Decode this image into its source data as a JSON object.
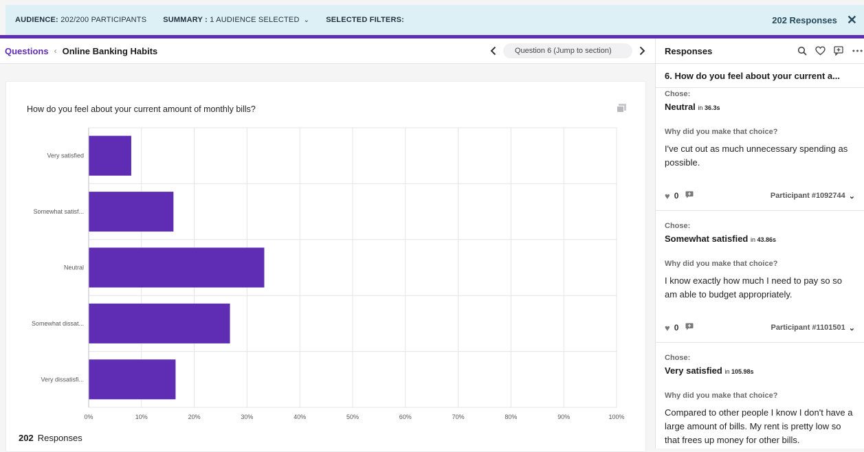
{
  "filterbar": {
    "audience_label": "AUDIENCE:",
    "audience_value": "202/200 PARTICIPANTS",
    "summary_label": "SUMMARY :",
    "summary_value": "1 AUDIENCE SELECTED",
    "filters_label": "SELECTED FILTERS:",
    "responses": "202 Responses",
    "close": "✕"
  },
  "header": {
    "crumb_root": "Questions",
    "crumb_sep": "‹",
    "crumb_current": "Online Banking Habits",
    "prev": "‹",
    "jump": "Question 6 (Jump to section)",
    "next": "›"
  },
  "panel": {
    "title": "Responses",
    "question": "6. How do you feel about your current a...",
    "chose_label": "Chose:",
    "in_word": "in",
    "why_label": "Why did you make that choice?",
    "cards": [
      {
        "choice": "Neutral",
        "time": "36.3s",
        "answer": "I've cut out as much unnecessary spending as possible.",
        "likes": "0",
        "participant": "Participant #1092744"
      },
      {
        "choice": "Somewhat satisfied",
        "time": "43.86s",
        "answer": "I know exactly how much I need to pay so so am able to budget appropriately.",
        "likes": "0",
        "participant": "Participant #1101501"
      },
      {
        "choice": "Very satisfied",
        "time": "105.98s",
        "answer": "Compared to other people I know I don't have a large amount of bills. My rent is pretty low so that frees up money for other bills.",
        "likes": "",
        "participant": ""
      }
    ]
  },
  "colors": {
    "bar": "#5f2db3",
    "accent": "#5f2db3",
    "filterbar_bg": "#dcf0f6"
  },
  "chart_data": {
    "type": "bar",
    "orientation": "horizontal",
    "title": "How do you feel about your current amount of monthly bills?",
    "categories": [
      "Very satisfied",
      "Somewhat satisf...",
      "Neutral",
      "Somewhat dissat...",
      "Very dissatisfi..."
    ],
    "values": [
      8,
      16,
      33.2,
      26.7,
      16.4
    ],
    "xlim": [
      0,
      100
    ],
    "xticks": [
      "0%",
      "10%",
      "20%",
      "30%",
      "40%",
      "50%",
      "60%",
      "70%",
      "80%",
      "90%",
      "100%"
    ],
    "grid": true
  },
  "footer": {
    "count": "202",
    "label": "Responses"
  }
}
